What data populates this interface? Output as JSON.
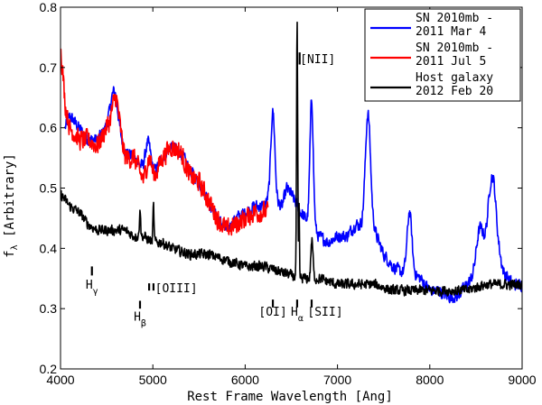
{
  "chart_data": {
    "type": "line",
    "xlabel": "Rest Frame Wavelength [Ang]",
    "ylabel": "f",
    "ylabel_sub": "λ",
    "ylabel_rest": " [Arbitrary]",
    "xlim": [
      4000,
      9000
    ],
    "ylim": [
      0.2,
      0.8
    ],
    "xticks": [
      4000,
      5000,
      6000,
      7000,
      8000,
      9000
    ],
    "yticks": [
      0.2,
      0.3,
      0.4,
      0.5,
      0.6,
      0.7,
      0.8
    ],
    "grid": false,
    "legend_position": "top-right",
    "legend": [
      {
        "line1": "SN 2010mb -",
        "line2": "2011 Mar 4",
        "color": "#0000ff"
      },
      {
        "line1": "SN 2010mb -",
        "line2": "2011 Jul 5",
        "color": "#ff0000"
      },
      {
        "line1": "Host galaxy",
        "line2": "2012 Feb 20",
        "color": "#000000"
      }
    ],
    "series": [
      {
        "color": "#0000ff",
        "continuum": [
          [
            4050,
            0.6
          ],
          [
            4100,
            0.62
          ],
          [
            4200,
            0.6
          ],
          [
            4300,
            0.58
          ],
          [
            4400,
            0.58
          ],
          [
            4500,
            0.6
          ],
          [
            4600,
            0.6
          ],
          [
            4700,
            0.56
          ],
          [
            4800,
            0.55
          ],
          [
            4900,
            0.53
          ],
          [
            5000,
            0.52
          ],
          [
            5100,
            0.55
          ],
          [
            5200,
            0.57
          ],
          [
            5300,
            0.56
          ],
          [
            5400,
            0.53
          ],
          [
            5500,
            0.51
          ],
          [
            5600,
            0.48
          ],
          [
            5700,
            0.45
          ],
          [
            5800,
            0.43
          ],
          [
            5900,
            0.45
          ],
          [
            6000,
            0.46
          ],
          [
            6100,
            0.47
          ],
          [
            6200,
            0.47
          ],
          [
            6250,
            0.48
          ],
          [
            6400,
            0.47
          ],
          [
            6450,
            0.5
          ],
          [
            6500,
            0.49
          ],
          [
            6600,
            0.46
          ],
          [
            6700,
            0.44
          ],
          [
            6800,
            0.42
          ],
          [
            6900,
            0.41
          ],
          [
            7000,
            0.42
          ],
          [
            7100,
            0.42
          ],
          [
            7200,
            0.44
          ],
          [
            7400,
            0.43
          ],
          [
            7500,
            0.39
          ],
          [
            7600,
            0.37
          ],
          [
            7700,
            0.36
          ],
          [
            7800,
            0.36
          ],
          [
            7900,
            0.35
          ],
          [
            8000,
            0.33
          ],
          [
            8100,
            0.33
          ],
          [
            8200,
            0.32
          ],
          [
            8300,
            0.32
          ],
          [
            8400,
            0.34
          ],
          [
            8500,
            0.35
          ],
          [
            8600,
            0.38
          ],
          [
            8700,
            0.42
          ],
          [
            8800,
            0.36
          ],
          [
            8900,
            0.34
          ],
          [
            9000,
            0.34
          ]
        ],
        "peaks": [
          [
            4580,
            0.06,
            40
          ],
          [
            4950,
            0.05,
            30
          ],
          [
            6300,
            0.15,
            22
          ],
          [
            6720,
            0.21,
            18
          ],
          [
            7330,
            0.19,
            28
          ],
          [
            7780,
            0.1,
            25
          ],
          [
            8540,
            0.07,
            40
          ],
          [
            8670,
            0.11,
            40
          ]
        ],
        "noise": 0.012
      },
      {
        "color": "#ff0000",
        "continuum": [
          [
            4000,
            0.74
          ],
          [
            4050,
            0.64
          ],
          [
            4100,
            0.6
          ],
          [
            4200,
            0.58
          ],
          [
            4300,
            0.58
          ],
          [
            4400,
            0.57
          ],
          [
            4500,
            0.6
          ],
          [
            4600,
            0.6
          ],
          [
            4700,
            0.55
          ],
          [
            4800,
            0.55
          ],
          [
            4900,
            0.51
          ],
          [
            5000,
            0.51
          ],
          [
            5100,
            0.55
          ],
          [
            5200,
            0.57
          ],
          [
            5300,
            0.56
          ],
          [
            5400,
            0.52
          ],
          [
            5500,
            0.51
          ],
          [
            5600,
            0.48
          ],
          [
            5700,
            0.45
          ],
          [
            5800,
            0.43
          ],
          [
            5900,
            0.44
          ],
          [
            6000,
            0.45
          ],
          [
            6100,
            0.46
          ],
          [
            6200,
            0.46
          ],
          [
            6250,
            0.46
          ]
        ],
        "peaks": [
          [
            4600,
            0.05,
            40
          ],
          [
            4960,
            0.04,
            30
          ]
        ],
        "noise": 0.02
      },
      {
        "color": "#000000",
        "continuum": [
          [
            4000,
            0.49
          ],
          [
            4100,
            0.47
          ],
          [
            4200,
            0.46
          ],
          [
            4300,
            0.44
          ],
          [
            4400,
            0.43
          ],
          [
            4500,
            0.43
          ],
          [
            4600,
            0.43
          ],
          [
            4700,
            0.43
          ],
          [
            4800,
            0.42
          ],
          [
            4900,
            0.42
          ],
          [
            5000,
            0.41
          ],
          [
            5100,
            0.41
          ],
          [
            5200,
            0.4
          ],
          [
            5400,
            0.39
          ],
          [
            5600,
            0.39
          ],
          [
            5800,
            0.38
          ],
          [
            6000,
            0.37
          ],
          [
            6200,
            0.37
          ],
          [
            6400,
            0.36
          ],
          [
            6600,
            0.35
          ],
          [
            6800,
            0.35
          ],
          [
            7000,
            0.34
          ],
          [
            7200,
            0.34
          ],
          [
            7400,
            0.34
          ],
          [
            7600,
            0.33
          ],
          [
            7800,
            0.33
          ],
          [
            8000,
            0.33
          ],
          [
            8200,
            0.33
          ],
          [
            8400,
            0.33
          ],
          [
            8600,
            0.34
          ],
          [
            8800,
            0.34
          ],
          [
            9000,
            0.34
          ]
        ],
        "peaks": [
          [
            6563,
            0.42,
            6
          ],
          [
            6584,
            0.12,
            4
          ],
          [
            4861,
            0.05,
            6
          ],
          [
            5007,
            0.06,
            6
          ],
          [
            6717,
            0.05,
            8
          ],
          [
            6731,
            0.04,
            8
          ]
        ],
        "noise": 0.01
      }
    ],
    "annotations": [
      {
        "label": "H",
        "sub": "γ",
        "x": 4340,
        "tick_y": [
          0.37,
          0.355
        ],
        "label_y": 0.333,
        "label_dx": 0
      },
      {
        "label": "H",
        "sub": "β",
        "x": 4861,
        "tick_y": [
          0.313,
          0.3
        ],
        "label_y": 0.28,
        "label_dx": 0
      },
      {
        "label": "[OIII]",
        "sub": "",
        "x": 4960,
        "tick_y": [
          0.342,
          0.33
        ],
        "label_y": 0.327,
        "label_dx": 30
      },
      {
        "label": "[OI]",
        "sub": "",
        "x": 6300,
        "tick_y": [
          0.315,
          0.302
        ],
        "label_y": 0.288,
        "label_dx": 0
      },
      {
        "label": "H",
        "sub": "α",
        "x": 6563,
        "tick_y": [
          0.315,
          0.302
        ],
        "label_y": 0.288,
        "label_dx": 0
      },
      {
        "label": "[SII]",
        "sub": "",
        "x": 6720,
        "tick_y": [
          0.315,
          0.302
        ],
        "label_y": 0.288,
        "label_dx": 15
      },
      {
        "label": "[NII]",
        "sub": "",
        "x": 6590,
        "tick_y": [
          0.725,
          0.705
        ],
        "label_y": 0.707,
        "label_dx": 20
      }
    ]
  }
}
